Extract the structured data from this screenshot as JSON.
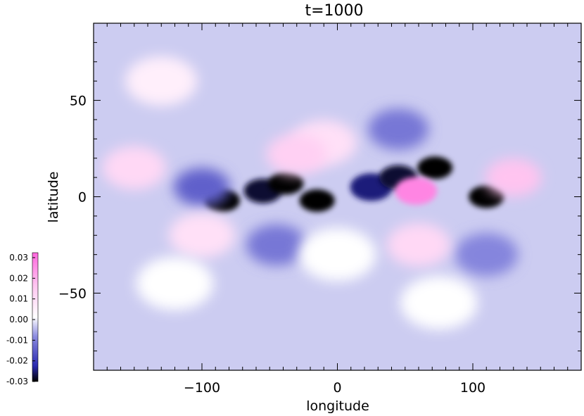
{
  "chart_data": {
    "type": "heatmap",
    "title": "t=1000",
    "xlabel": "longitude",
    "ylabel": "latitude",
    "xlim": [
      -180,
      180
    ],
    "ylim": [
      -90,
      90
    ],
    "xticks": [
      -100,
      0,
      100
    ],
    "xtick_labels": [
      "−100",
      "0",
      "100"
    ],
    "yticks": [
      -50,
      0,
      50
    ],
    "ytick_labels": [
      "−50",
      "0",
      "50"
    ],
    "grid": false,
    "colorbar": {
      "range": [
        -0.03,
        0.03
      ],
      "ticks": [
        -0.03,
        -0.02,
        -0.01,
        0.0,
        0.01,
        0.02,
        0.03
      ],
      "tick_labels": [
        "-0.03",
        "-0.02",
        "-0.01",
        "0.00",
        "0.01",
        "0.02",
        "0.03"
      ],
      "colors": {
        "min": "#000000",
        "neg": "#2a2ab0",
        "mid": "#ffffff",
        "pos": "#ff8ae0",
        "max": "#ff66dd"
      },
      "placement": "lower-left"
    },
    "background_value": -0.004,
    "features": [
      {
        "lon": -85,
        "lat": -2,
        "value": -0.03
      },
      {
        "lon": -55,
        "lat": 3,
        "value": -0.028
      },
      {
        "lon": -38,
        "lat": 7,
        "value": -0.03
      },
      {
        "lon": -15,
        "lat": -2,
        "value": -0.03
      },
      {
        "lon": 25,
        "lat": 5,
        "value": -0.025
      },
      {
        "lon": 45,
        "lat": 10,
        "value": -0.028
      },
      {
        "lon": 72,
        "lat": 15,
        "value": -0.03
      },
      {
        "lon": 110,
        "lat": 0,
        "value": -0.03
      },
      {
        "lon": 45,
        "lat": 35,
        "value": -0.012
      },
      {
        "lon": 110,
        "lat": -30,
        "value": -0.01
      },
      {
        "lon": -45,
        "lat": -25,
        "value": -0.012
      },
      {
        "lon": -100,
        "lat": 5,
        "value": -0.015
      },
      {
        "lon": -130,
        "lat": 60,
        "value": 0.004
      },
      {
        "lon": -10,
        "lat": 28,
        "value": 0.008
      },
      {
        "lon": 58,
        "lat": 3,
        "value": 0.025
      },
      {
        "lon": 130,
        "lat": 10,
        "value": 0.015
      },
      {
        "lon": -150,
        "lat": 15,
        "value": 0.01
      },
      {
        "lon": -100,
        "lat": -20,
        "value": 0.008
      },
      {
        "lon": -30,
        "lat": 22,
        "value": 0.012
      },
      {
        "lon": 60,
        "lat": -25,
        "value": 0.01
      },
      {
        "lon": -120,
        "lat": -45,
        "value": 0.0
      },
      {
        "lon": 0,
        "lat": -30,
        "value": 0.0
      },
      {
        "lon": 75,
        "lat": -55,
        "value": 0.0
      }
    ]
  }
}
